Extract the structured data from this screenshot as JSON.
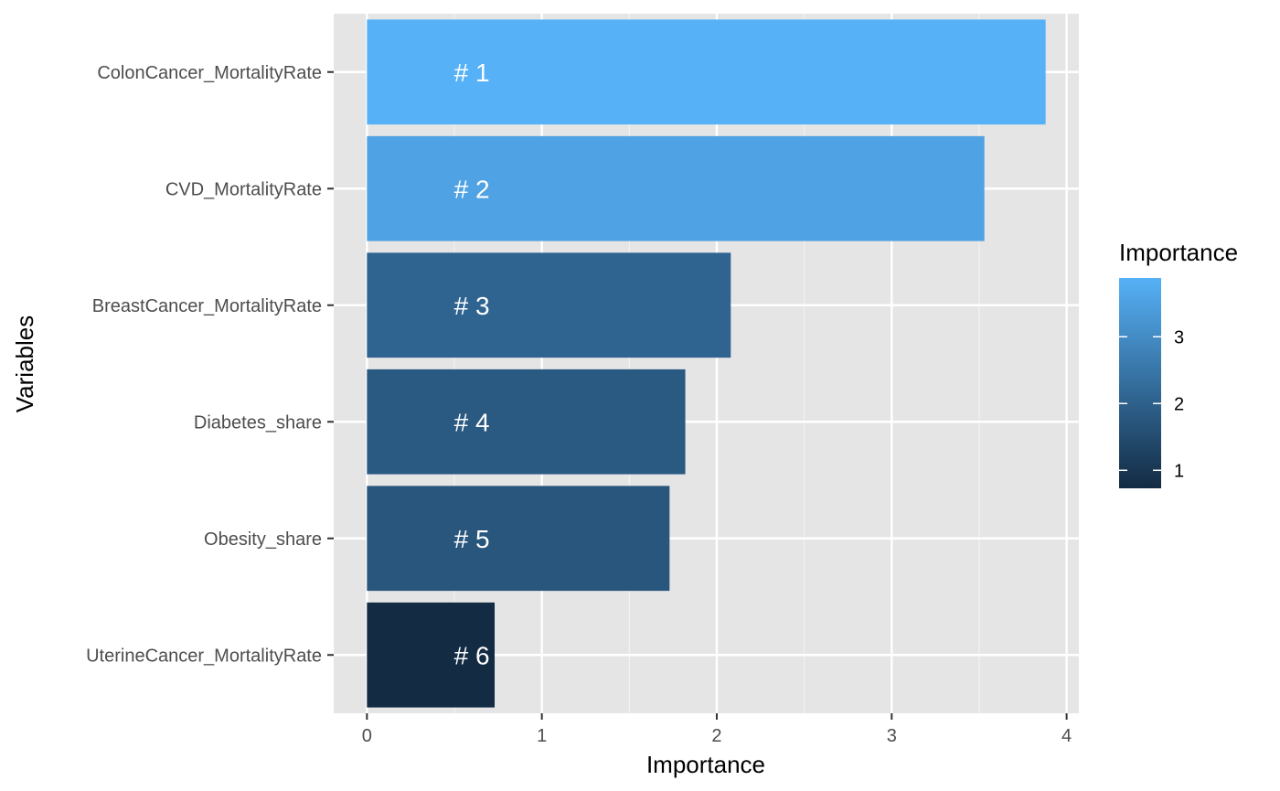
{
  "chart_data": {
    "type": "bar",
    "orientation": "horizontal",
    "xlabel": "Importance",
    "ylabel": "Variables",
    "xlim": [
      -0.19,
      4.07
    ],
    "x_ticks": [
      0,
      1,
      2,
      3,
      4
    ],
    "grid": true,
    "legend": {
      "title": "Importance",
      "placement": "right",
      "type": "colorbar",
      "ticks": [
        1,
        2,
        3
      ],
      "low_color": "#132B43",
      "high_color": "#56B1F7",
      "range": [
        0.73,
        3.88
      ]
    },
    "categories": [
      "ColonCancer_MortalityRate",
      "CVD_MortalityRate",
      "BreastCancer_MortalityRate",
      "Diabetes_share",
      "Obesity_share",
      "UterineCancer_MortalityRate"
    ],
    "values": [
      3.88,
      3.53,
      2.08,
      1.82,
      1.73,
      0.73
    ],
    "bar_labels": [
      "# 1",
      "# 2",
      "# 3",
      "# 4",
      "# 5",
      "# 6"
    ],
    "bar_label_x": 0.6,
    "colors": {
      "panel_background": "#E5E5E5",
      "grid_major": "#FFFFFF",
      "axis_text": "#4D4D4D",
      "bar_label": "#FFFFFF"
    }
  }
}
